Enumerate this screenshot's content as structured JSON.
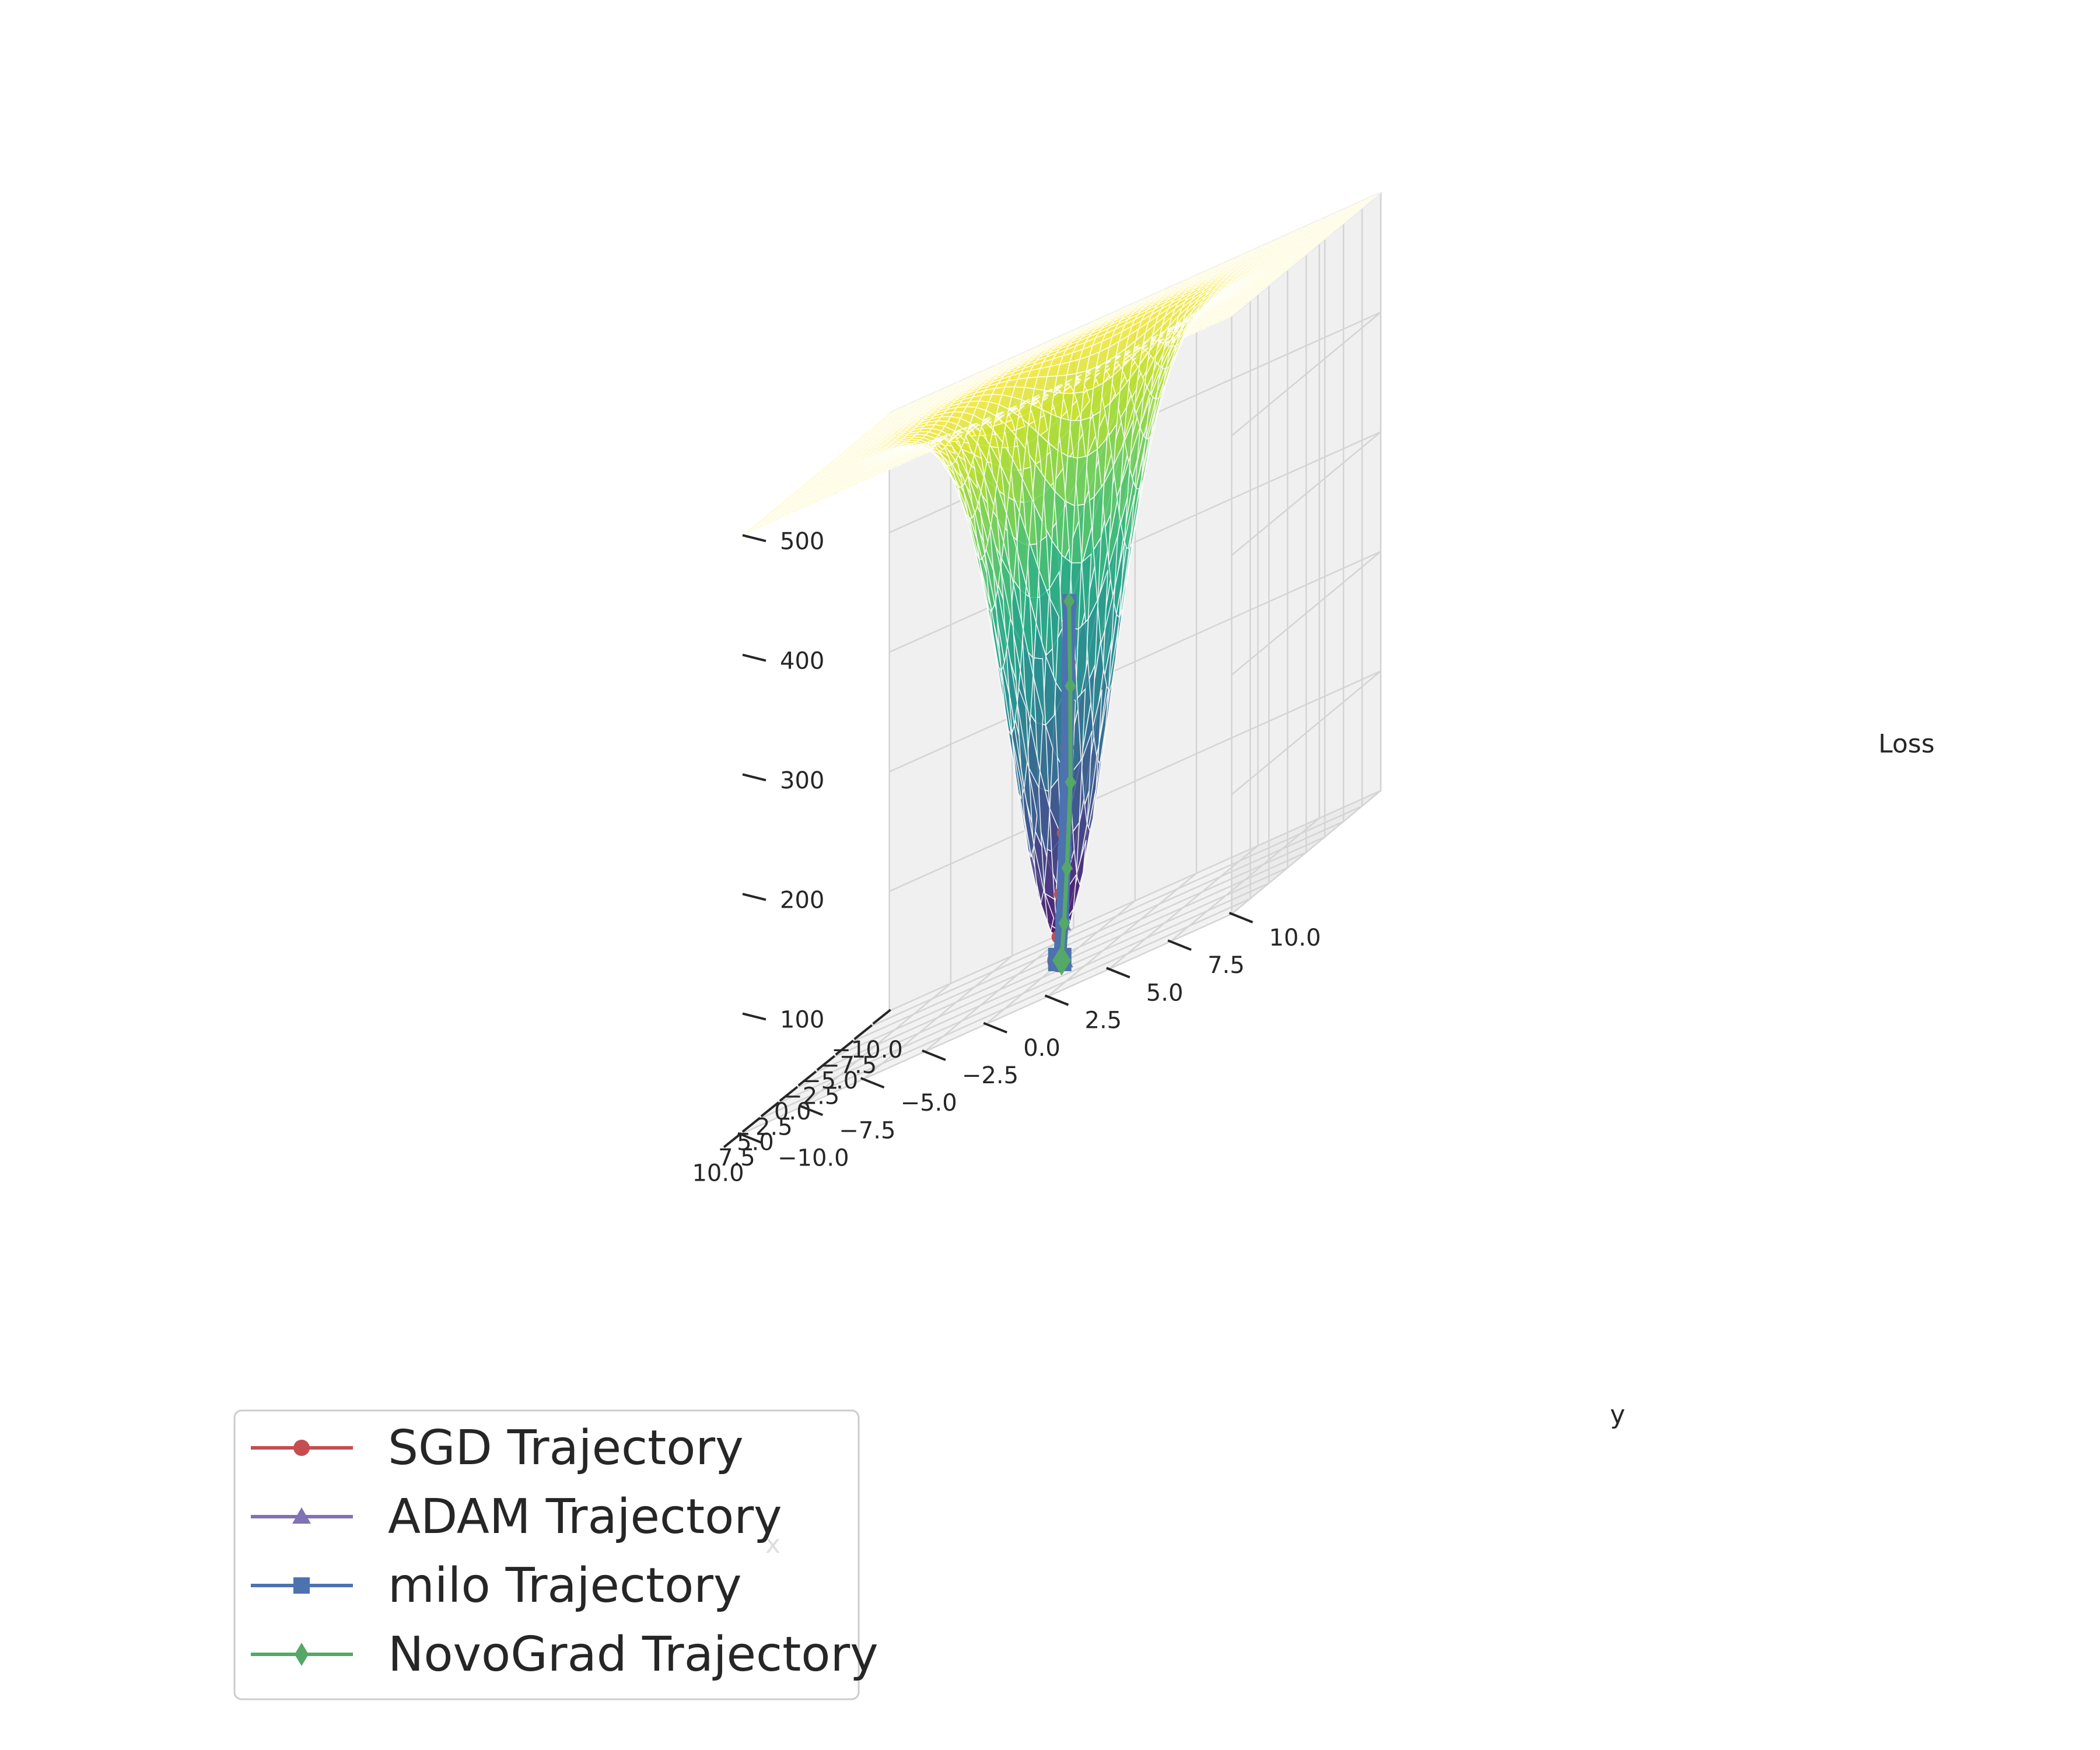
{
  "chart_data": {
    "type": "surface3d",
    "surface": "loss landscape",
    "x": {
      "label": "x",
      "range": [
        -10,
        10
      ],
      "ticks": [
        "−10.0",
        "−7.5",
        "−5.0",
        "−2.5",
        "0.0",
        "2.5",
        "5.0",
        "7.5",
        "10.0"
      ]
    },
    "y": {
      "label": "y",
      "range": [
        -10,
        10
      ],
      "ticks": [
        "−10.0",
        "−7.5",
        "−5.0",
        "−2.5",
        "0.0",
        "2.5",
        "5.0",
        "7.5",
        "10.0"
      ]
    },
    "z": {
      "label": "Loss",
      "range": [
        0,
        500
      ],
      "ticks": [
        "100",
        "200",
        "300",
        "400",
        "500"
      ]
    },
    "colormap": "viridis",
    "grid": true,
    "legend": {
      "position": "bottom-left"
    },
    "series": [
      {
        "name": "SGD Trajectory",
        "marker": "circle",
        "color": "#c44e52",
        "points": [
          [
            0.5,
            0.5,
            300
          ],
          [
            0.9,
            0.6,
            250
          ],
          [
            1.1,
            0.6,
            180
          ],
          [
            1.2,
            0.5,
            110
          ],
          [
            1.25,
            0.4,
            60
          ],
          [
            1.25,
            0.3,
            25
          ],
          [
            1.2,
            0.3,
            5
          ]
        ]
      },
      {
        "name": "ADAM Trajectory",
        "marker": "triangle",
        "color": "#8172b3",
        "points": [
          [
            0.3,
            0.5,
            300
          ],
          [
            0.1,
            0.4,
            230
          ],
          [
            0.0,
            0.3,
            150
          ],
          [
            -0.1,
            0.2,
            80
          ],
          [
            -0.15,
            0.1,
            30
          ],
          [
            -0.15,
            0.0,
            3
          ]
        ]
      },
      {
        "name": "milo Trajectory",
        "marker": "square",
        "color": "#4c72b0",
        "points": [
          [
            0.45,
            0.5,
            300
          ],
          [
            0.3,
            0.4,
            240
          ],
          [
            0.15,
            0.3,
            160
          ],
          [
            0.1,
            0.2,
            90
          ],
          [
            0.1,
            0.1,
            35
          ],
          [
            0.1,
            0.0,
            3
          ]
        ]
      },
      {
        "name": "NovoGrad Trajectory",
        "marker": "diamond",
        "color": "#55a868",
        "points": [
          [
            0.5,
            0.5,
            300
          ],
          [
            1.0,
            0.7,
            230
          ],
          [
            1.3,
            0.8,
            150
          ],
          [
            1.45,
            0.7,
            80
          ],
          [
            1.5,
            0.6,
            35
          ],
          [
            1.5,
            0.5,
            5
          ]
        ]
      }
    ]
  }
}
